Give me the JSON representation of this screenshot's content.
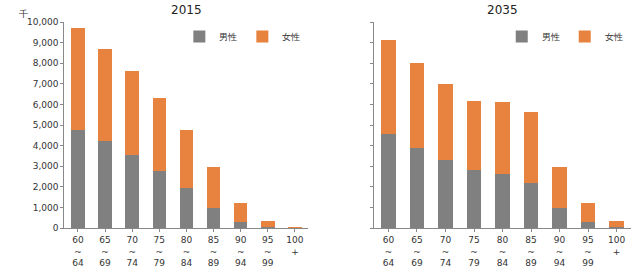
{
  "chart_data": [
    {
      "type": "bar",
      "title": "2015",
      "ylabel": "千",
      "stacked": true,
      "legend": "top-right",
      "categories": [
        "60~64",
        "65~69",
        "70~74",
        "75~79",
        "80~84",
        "85~89",
        "90~94",
        "95~99",
        "100+"
      ],
      "series": [
        {
          "name": "男性",
          "color": "#808080",
          "values": [
            4750,
            4200,
            3550,
            2750,
            1950,
            950,
            300,
            50,
            10
          ]
        },
        {
          "name": "女性",
          "color": "#e8823f",
          "values": [
            4950,
            4500,
            4050,
            3550,
            2800,
            2000,
            900,
            300,
            50
          ]
        }
      ],
      "ylim": [
        0,
        10000
      ],
      "yticks": [
        0,
        {
          "value": 1000,
          "label": "1,000"
        },
        {
          "value": 2000,
          "label": "2,000"
        },
        {
          "value": 3000,
          "label": "3,000"
        },
        {
          "value": 4000,
          "label": "4,000"
        },
        {
          "value": 5000,
          "label": "5,000"
        },
        {
          "value": 6000,
          "label": "6,000"
        },
        {
          "value": 7000,
          "label": "7,000"
        },
        {
          "value": 8000,
          "label": "8,000"
        },
        {
          "value": 9000,
          "label": "9,000"
        },
        {
          "value": 10000,
          "label": "10,000"
        }
      ]
    },
    {
      "type": "bar",
      "title": "2035",
      "stacked": true,
      "legend": "top-right",
      "tick_labels": "x",
      "categories": [
        "60~64",
        "65~69",
        "70~74",
        "75~79",
        "80~84",
        "85~89",
        "90~94",
        "95~99",
        "100+"
      ],
      "series": [
        {
          "name": "男性",
          "color": "#808080",
          "values": [
            4550,
            3900,
            3300,
            2800,
            2600,
            2200,
            950,
            300,
            50
          ]
        },
        {
          "name": "女性",
          "color": "#e8823f",
          "values": [
            4600,
            4100,
            3700,
            3350,
            3500,
            3450,
            2000,
            900,
            300
          ]
        }
      ],
      "ylim": [
        0,
        10000
      ],
      "yticks": [
        0,
        1000,
        2000,
        3000,
        4000,
        5000,
        6000,
        7000,
        8000,
        9000,
        10000
      ]
    }
  ]
}
